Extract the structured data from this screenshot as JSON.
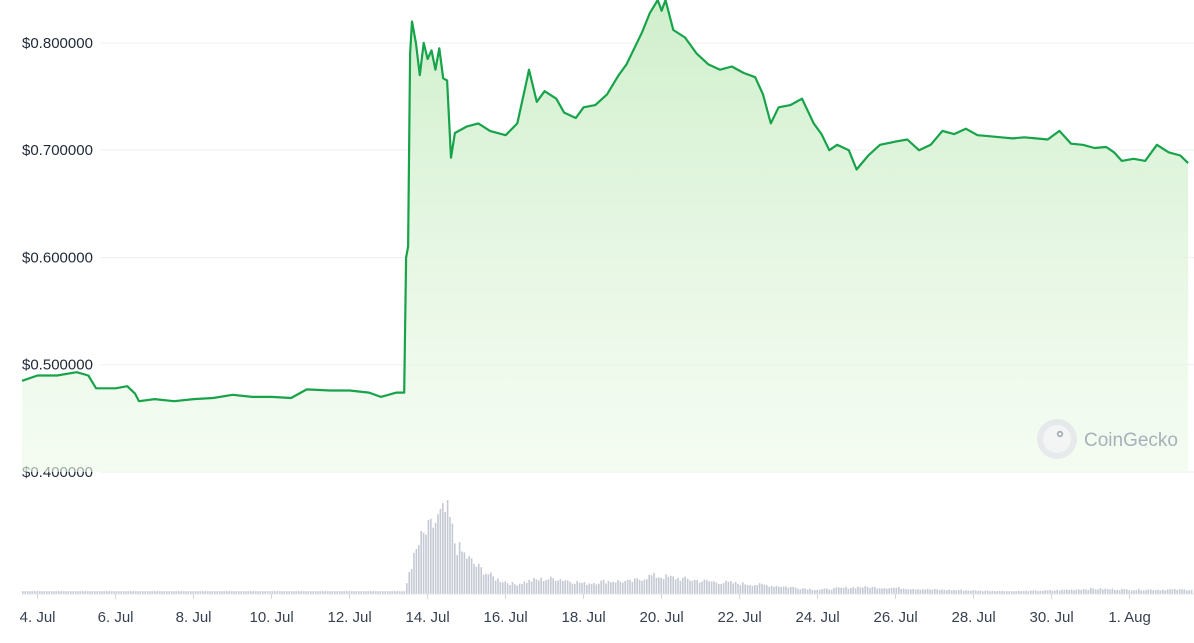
{
  "chart_data": {
    "type": "line",
    "title": "",
    "xlabel": "",
    "ylabel": "",
    "ylim": [
      0.4,
      0.84
    ],
    "y_ticks": [
      "$0.400000",
      "$0.500000",
      "$0.600000",
      "$0.700000",
      "$0.800000"
    ],
    "y_tick_values": [
      0.4,
      0.5,
      0.6,
      0.7,
      0.8
    ],
    "x_ticks": [
      "4. Jul",
      "6. Jul",
      "8. Jul",
      "10. Jul",
      "12. Jul",
      "14. Jul",
      "16. Jul",
      "18. Jul",
      "20. Jul",
      "22. Jul",
      "24. Jul",
      "26. Jul",
      "28. Jul",
      "30. Jul",
      "1. Aug"
    ],
    "x_tick_days": [
      4,
      6,
      8,
      10,
      12,
      14,
      16,
      18,
      20,
      22,
      24,
      26,
      28,
      30,
      32
    ],
    "xlim_days": [
      3.6,
      33.6
    ],
    "grid": true,
    "legend": "none",
    "series": [
      {
        "color": "#16a34a",
        "fill": "#dcfce7",
        "points": [
          [
            3.6,
            0.485
          ],
          [
            4.0,
            0.49
          ],
          [
            4.5,
            0.49
          ],
          [
            5.0,
            0.493
          ],
          [
            5.3,
            0.49
          ],
          [
            5.5,
            0.478
          ],
          [
            6.0,
            0.478
          ],
          [
            6.3,
            0.48
          ],
          [
            6.5,
            0.473
          ],
          [
            6.6,
            0.466
          ],
          [
            7.0,
            0.468
          ],
          [
            7.5,
            0.466
          ],
          [
            8.0,
            0.468
          ],
          [
            8.5,
            0.469
          ],
          [
            9.0,
            0.472
          ],
          [
            9.5,
            0.47
          ],
          [
            10.0,
            0.47
          ],
          [
            10.5,
            0.469
          ],
          [
            10.9,
            0.477
          ],
          [
            11.5,
            0.476
          ],
          [
            12.0,
            0.476
          ],
          [
            12.5,
            0.474
          ],
          [
            12.8,
            0.47
          ],
          [
            13.2,
            0.474
          ],
          [
            13.4,
            0.474
          ],
          [
            13.45,
            0.6
          ],
          [
            13.5,
            0.61
          ],
          [
            13.55,
            0.79
          ],
          [
            13.6,
            0.82
          ],
          [
            13.7,
            0.8
          ],
          [
            13.8,
            0.77
          ],
          [
            13.9,
            0.8
          ],
          [
            14.0,
            0.785
          ],
          [
            14.1,
            0.793
          ],
          [
            14.2,
            0.775
          ],
          [
            14.3,
            0.795
          ],
          [
            14.4,
            0.767
          ],
          [
            14.5,
            0.765
          ],
          [
            14.6,
            0.693
          ],
          [
            14.7,
            0.716
          ],
          [
            15.0,
            0.722
          ],
          [
            15.3,
            0.725
          ],
          [
            15.6,
            0.718
          ],
          [
            16.0,
            0.714
          ],
          [
            16.3,
            0.725
          ],
          [
            16.5,
            0.758
          ],
          [
            16.6,
            0.775
          ],
          [
            16.8,
            0.745
          ],
          [
            17.0,
            0.755
          ],
          [
            17.3,
            0.748
          ],
          [
            17.5,
            0.735
          ],
          [
            17.8,
            0.73
          ],
          [
            18.0,
            0.74
          ],
          [
            18.3,
            0.742
          ],
          [
            18.6,
            0.752
          ],
          [
            18.9,
            0.77
          ],
          [
            19.1,
            0.78
          ],
          [
            19.3,
            0.795
          ],
          [
            19.5,
            0.81
          ],
          [
            19.7,
            0.828
          ],
          [
            19.9,
            0.84
          ],
          [
            20.0,
            0.83
          ],
          [
            20.1,
            0.84
          ],
          [
            20.3,
            0.812
          ],
          [
            20.6,
            0.805
          ],
          [
            20.9,
            0.79
          ],
          [
            21.2,
            0.78
          ],
          [
            21.5,
            0.775
          ],
          [
            21.8,
            0.778
          ],
          [
            22.1,
            0.772
          ],
          [
            22.4,
            0.768
          ],
          [
            22.6,
            0.752
          ],
          [
            22.8,
            0.725
          ],
          [
            23.0,
            0.74
          ],
          [
            23.3,
            0.742
          ],
          [
            23.6,
            0.748
          ],
          [
            23.9,
            0.725
          ],
          [
            24.1,
            0.715
          ],
          [
            24.3,
            0.7
          ],
          [
            24.5,
            0.705
          ],
          [
            24.8,
            0.7
          ],
          [
            25.0,
            0.682
          ],
          [
            25.3,
            0.695
          ],
          [
            25.6,
            0.705
          ],
          [
            26.0,
            0.708
          ],
          [
            26.3,
            0.71
          ],
          [
            26.6,
            0.7
          ],
          [
            26.9,
            0.705
          ],
          [
            27.2,
            0.718
          ],
          [
            27.5,
            0.715
          ],
          [
            27.8,
            0.72
          ],
          [
            28.1,
            0.714
          ],
          [
            28.4,
            0.713
          ],
          [
            28.7,
            0.712
          ],
          [
            29.0,
            0.711
          ],
          [
            29.3,
            0.712
          ],
          [
            29.6,
            0.711
          ],
          [
            29.9,
            0.71
          ],
          [
            30.2,
            0.718
          ],
          [
            30.5,
            0.706
          ],
          [
            30.8,
            0.705
          ],
          [
            31.1,
            0.702
          ],
          [
            31.4,
            0.703
          ],
          [
            31.6,
            0.698
          ],
          [
            31.8,
            0.69
          ],
          [
            32.1,
            0.692
          ],
          [
            32.4,
            0.69
          ],
          [
            32.7,
            0.705
          ],
          [
            33.0,
            0.698
          ],
          [
            33.3,
            0.695
          ],
          [
            33.5,
            0.688
          ]
        ]
      }
    ],
    "volume_profile": [
      [
        3.6,
        0.015
      ],
      [
        10.0,
        0.01
      ],
      [
        12.0,
        0.013
      ],
      [
        13.4,
        0.014
      ],
      [
        13.5,
        0.25
      ],
      [
        13.8,
        0.62
      ],
      [
        14.3,
        0.88
      ],
      [
        14.5,
        0.95
      ],
      [
        14.7,
        0.55
      ],
      [
        15.2,
        0.33
      ],
      [
        15.7,
        0.18
      ],
      [
        16.2,
        0.11
      ],
      [
        16.7,
        0.16
      ],
      [
        17.3,
        0.18
      ],
      [
        18.0,
        0.12
      ],
      [
        18.6,
        0.15
      ],
      [
        19.2,
        0.14
      ],
      [
        19.7,
        0.21
      ],
      [
        20.2,
        0.19
      ],
      [
        21.0,
        0.15
      ],
      [
        22.0,
        0.12
      ],
      [
        23.0,
        0.09
      ],
      [
        24.0,
        0.05
      ],
      [
        25.0,
        0.08
      ],
      [
        26.0,
        0.07
      ],
      [
        27.0,
        0.05
      ],
      [
        28.0,
        0.04
      ],
      [
        29.0,
        0.03
      ],
      [
        30.0,
        0.04
      ],
      [
        31.0,
        0.06
      ],
      [
        32.0,
        0.05
      ],
      [
        33.6,
        0.05
      ]
    ]
  },
  "watermark": {
    "text": "CoinGecko",
    "icon": "coingecko-logo-icon"
  }
}
